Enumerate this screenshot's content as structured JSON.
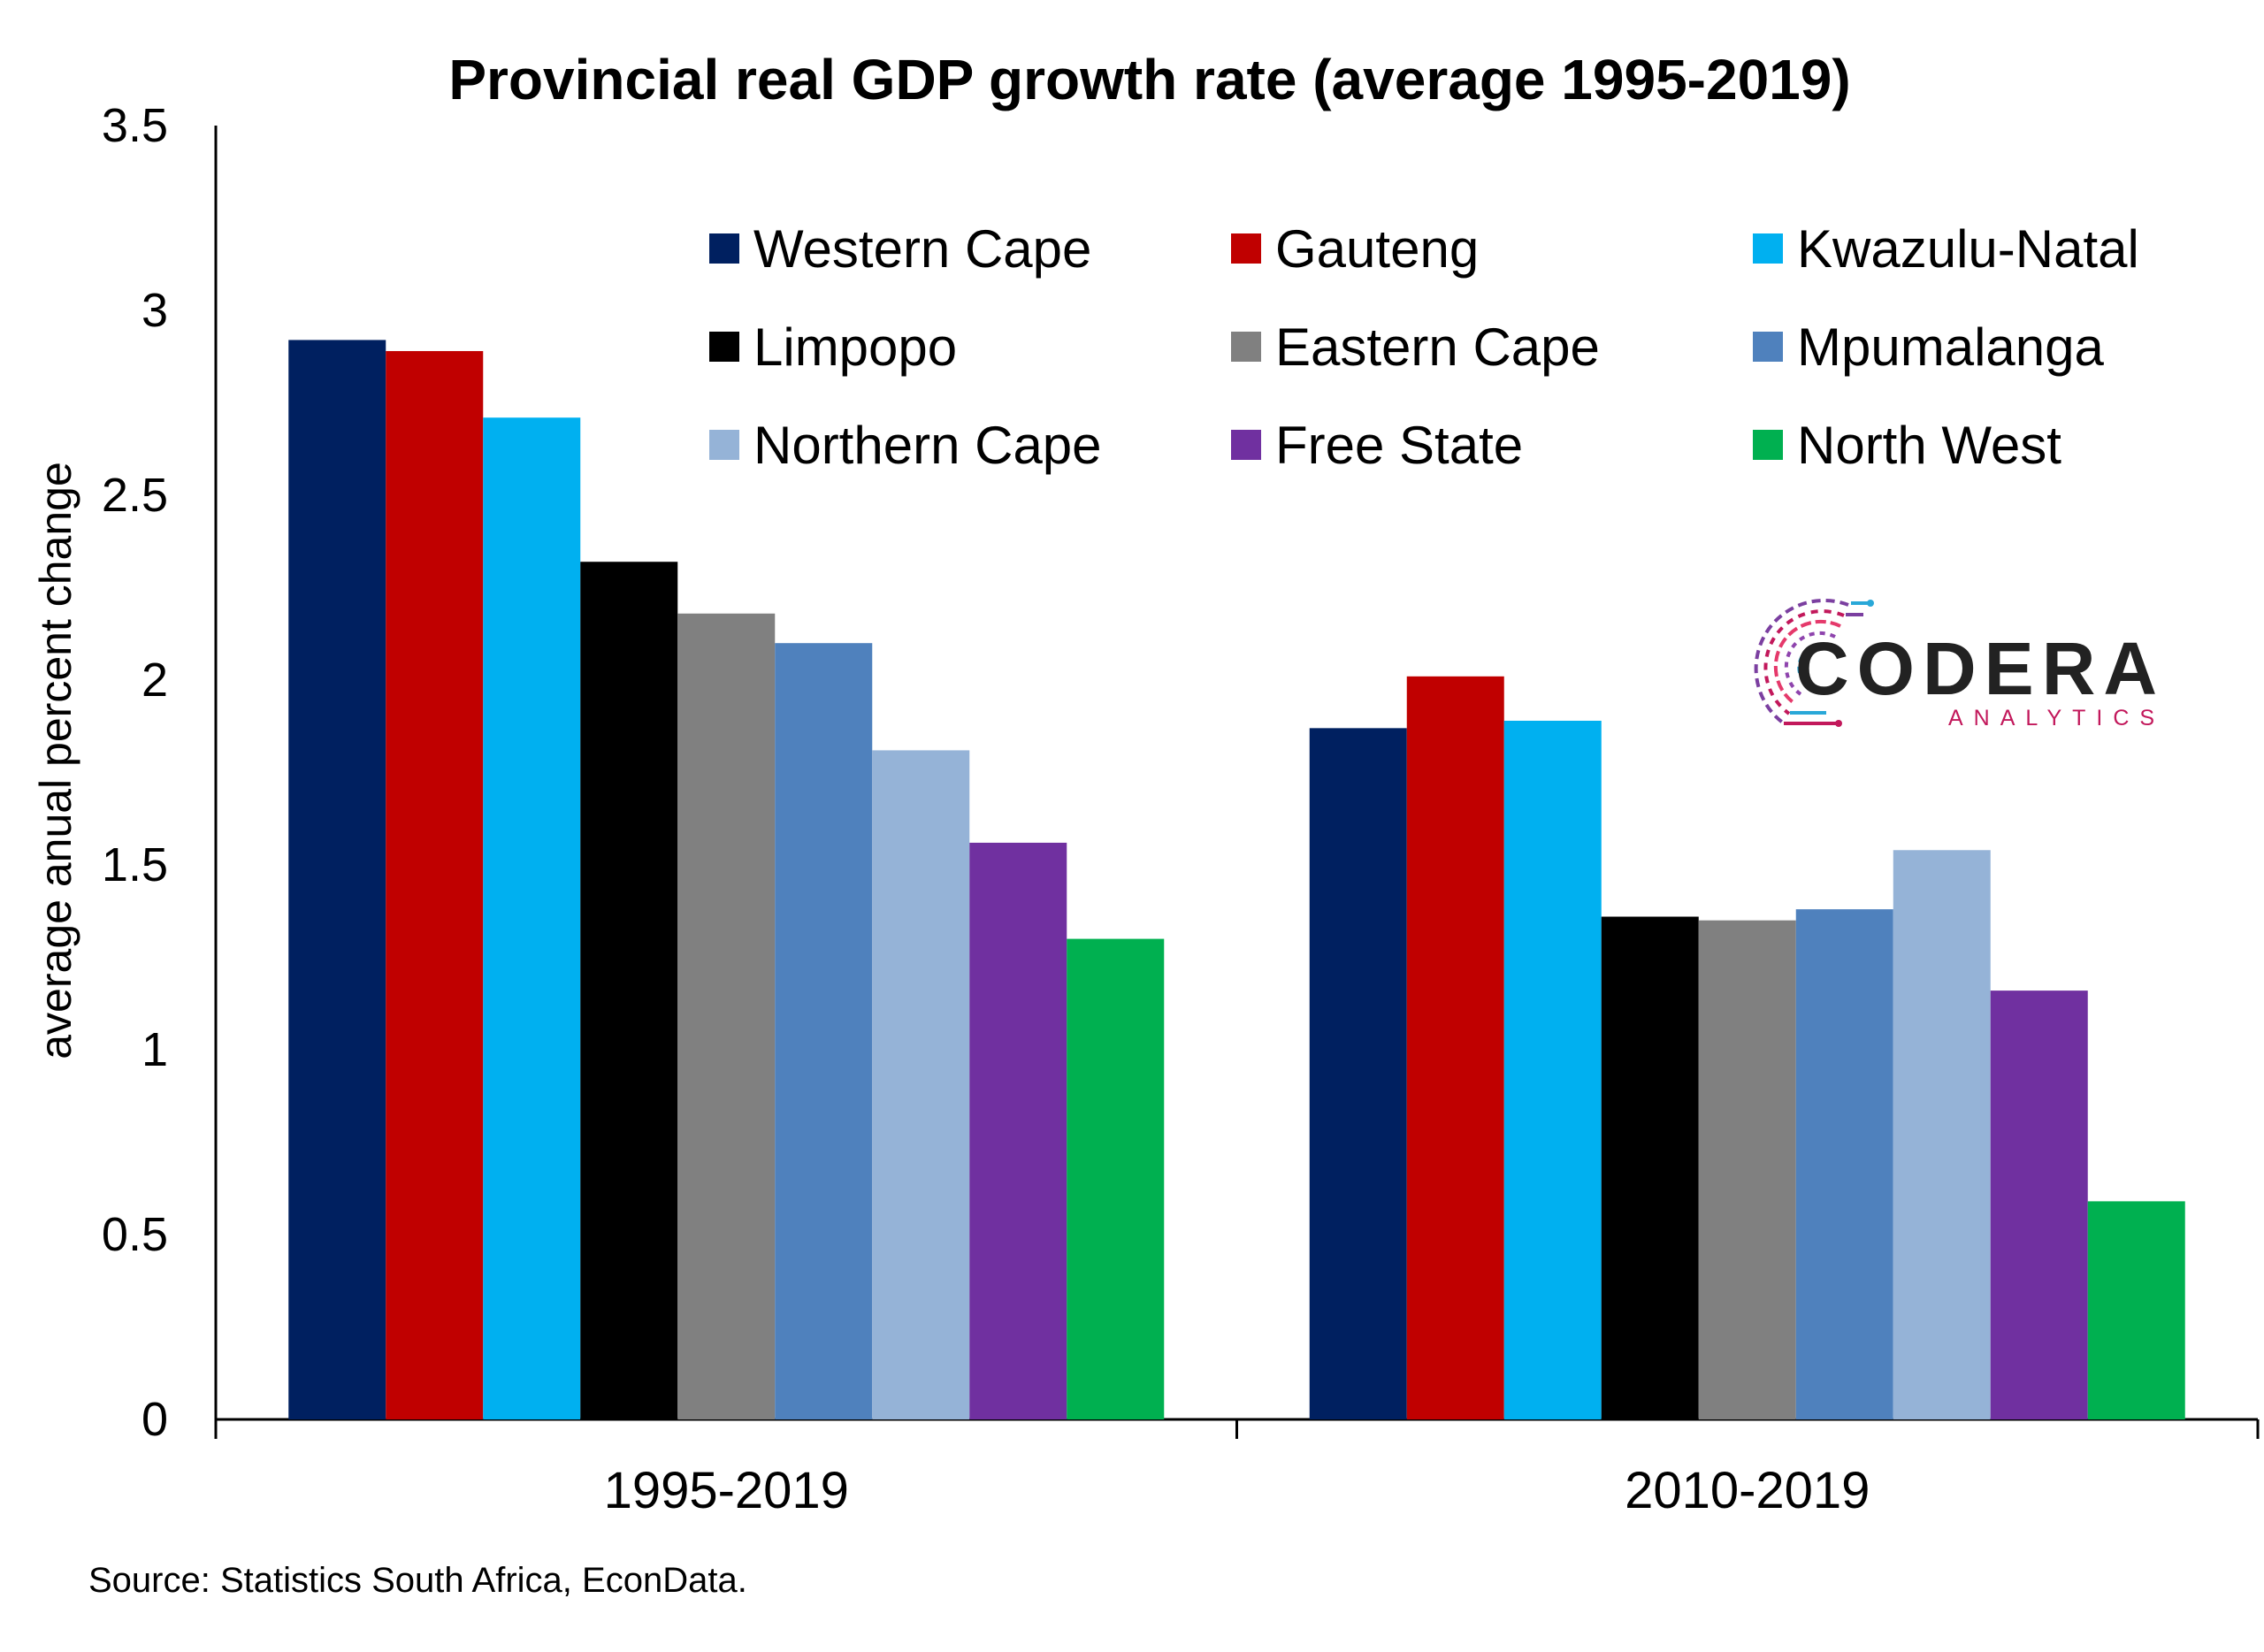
{
  "chart_data": {
    "type": "bar",
    "title": "Provincial real GDP growth rate (average 1995-2019)",
    "ylabel": "average anual percent change",
    "xlabel": "",
    "ylim": [
      0,
      3.5
    ],
    "yticks": [
      0,
      0.5,
      1,
      1.5,
      2,
      2.5,
      3,
      3.5
    ],
    "ytick_labels": [
      "0",
      "0.5",
      "1",
      "1.5",
      "2",
      "2.5",
      "3",
      "3.5"
    ],
    "categories": [
      "1995-2019",
      "2010-2019"
    ],
    "grid": false,
    "legend_position": "top-right",
    "series": [
      {
        "name": "Western Cape",
        "color": "#002060",
        "values": [
          2.92,
          1.87
        ]
      },
      {
        "name": "Gauteng",
        "color": "#C00000",
        "values": [
          2.89,
          2.01
        ]
      },
      {
        "name": "Kwazulu-Natal",
        "color": "#00B0F0",
        "values": [
          2.71,
          1.89
        ]
      },
      {
        "name": "Limpopo",
        "color": "#000000",
        "values": [
          2.32,
          1.36
        ]
      },
      {
        "name": "Eastern Cape",
        "color": "#808080",
        "values": [
          2.18,
          1.35
        ]
      },
      {
        "name": "Mpumalanga",
        "color": "#4F81BD",
        "values": [
          2.1,
          1.38
        ]
      },
      {
        "name": "Northern Cape",
        "color": "#95B3D7",
        "values": [
          1.81,
          1.54
        ]
      },
      {
        "name": "Free State",
        "color": "#7030A0",
        "values": [
          1.56,
          1.16
        ]
      },
      {
        "name": "North West",
        "color": "#00B050",
        "values": [
          1.3,
          0.59
        ]
      }
    ]
  },
  "source": "Source: Statistics South Africa, EconData.",
  "logo": {
    "name": "CODERA",
    "sub": "ANALYTICS"
  }
}
